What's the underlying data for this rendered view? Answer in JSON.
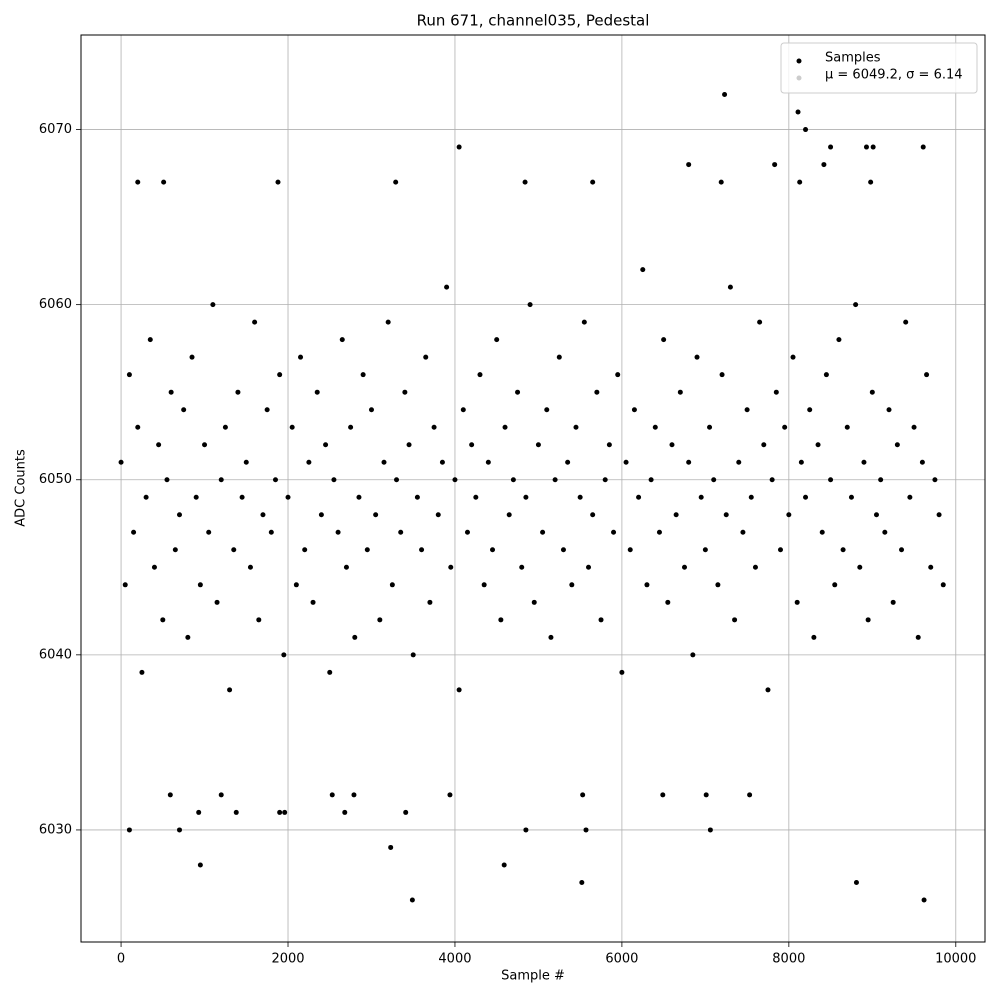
{
  "chart_data": {
    "type": "scatter",
    "title": "Run 671, channel035, Pedestal",
    "x_label": "Sample #",
    "y_label": "ADC Counts",
    "xlim": [
      -480,
      10350
    ],
    "ylim": [
      6023.6,
      6075.4
    ],
    "xticks": [
      0,
      2000,
      4000,
      6000,
      8000,
      10000
    ],
    "yticks": [
      6030,
      6040,
      6050,
      6060,
      6070
    ],
    "grid": true,
    "legend": "upper right",
    "series": [
      {
        "name": "Samples",
        "color": "#000000",
        "x": [
          0,
          50,
          100,
          150,
          200,
          250,
          300,
          350,
          400,
          450,
          500,
          550,
          600,
          650,
          700,
          750,
          800,
          850,
          900,
          950,
          1000,
          1050,
          1100,
          1150,
          1200,
          1250,
          1300,
          1350,
          1400,
          1450,
          1500,
          1550,
          1600,
          1650,
          1700,
          1750,
          1800,
          1850,
          1900,
          1950,
          2000,
          2050,
          2100,
          2150,
          2200,
          2250,
          2300,
          2350,
          2400,
          2450,
          2500,
          2550,
          2600,
          2650,
          2700,
          2750,
          2800,
          2850,
          2900,
          2950,
          3000,
          3050,
          3100,
          3150,
          3200,
          3250,
          3300,
          3350,
          3400,
          3450,
          3500,
          3550,
          3600,
          3650,
          3700,
          3750,
          3800,
          3850,
          3900,
          3950,
          4000,
          4050,
          4100,
          4150,
          4200,
          4250,
          4300,
          4350,
          4400,
          4450,
          4500,
          4550,
          4600,
          4650,
          4700,
          4750,
          4800,
          4850,
          4900,
          4950,
          5000,
          5050,
          5100,
          5150,
          5200,
          5250,
          5300,
          5350,
          5400,
          5450,
          5500,
          5550,
          5600,
          5650,
          5700,
          5750,
          5800,
          5850,
          5900,
          5950,
          6000,
          6050,
          6100,
          6150,
          6200,
          6250,
          6300,
          6350,
          6400,
          6450,
          6500,
          6550,
          6600,
          6650,
          6700,
          6750,
          6800,
          6850,
          6900,
          6950,
          7000,
          7050,
          7100,
          7150,
          7200,
          7250,
          7300,
          7350,
          7400,
          7450,
          7500,
          7550,
          7600,
          7650,
          7700,
          7750,
          7800,
          7850,
          7900,
          7950,
          8000,
          8050,
          8100,
          8150,
          8200,
          8250,
          8300,
          8350,
          8400,
          8450,
          8500,
          8550,
          8600,
          8650,
          8700,
          8750,
          8800,
          8850,
          8900,
          8950,
          9000,
          9050,
          9100,
          9150,
          9200,
          9250,
          9300,
          9350,
          9400,
          9450,
          9500,
          9550,
          9600,
          9650,
          9700,
          9750,
          9800,
          9850,
          100,
          950,
          3230,
          3490,
          4590,
          5520,
          8810,
          9620,
          7230,
          8110,
          8200,
          4050,
          8930,
          9010,
          9610,
          8500,
          7830,
          6800,
          8420,
          200,
          510,
          1880,
          3290,
          5650,
          4840,
          7190,
          8130,
          8980,
          7060,
          4850,
          5570,
          700,
          1900,
          1960,
          2680,
          3410,
          1380,
          930,
          7010,
          5530,
          6490,
          2530,
          2790,
          1200,
          3940,
          7530,
          590
        ],
        "values": [
          6051,
          6044,
          6056,
          6047,
          6053,
          6039,
          6049,
          6058,
          6045,
          6052,
          6042,
          6050,
          6055,
          6046,
          6048,
          6054,
          6041,
          6057,
          6049,
          6044,
          6052,
          6047,
          6060,
          6043,
          6050,
          6053,
          6038,
          6046,
          6055,
          6049,
          6051,
          6045,
          6059,
          6042,
          6048,
          6054,
          6047,
          6050,
          6056,
          6040,
          6049,
          6053,
          6044,
          6057,
          6046,
          6051,
          6043,
          6055,
          6048,
          6052,
          6039,
          6050,
          6047,
          6058,
          6045,
          6053,
          6041,
          6049,
          6056,
          6046,
          6054,
          6048,
          6042,
          6051,
          6059,
          6044,
          6050,
          6047,
          6055,
          6052,
          6040,
          6049,
          6046,
          6057,
          6043,
          6053,
          6048,
          6051,
          6061,
          6045,
          6050,
          6038,
          6054,
          6047,
          6052,
          6049,
          6056,
          6044,
          6051,
          6046,
          6058,
          6042,
          6053,
          6048,
          6050,
          6055,
          6045,
          6049,
          6060,
          6043,
          6052,
          6047,
          6054,
          6041,
          6050,
          6057,
          6046,
          6051,
          6044,
          6053,
          6049,
          6059,
          6045,
          6048,
          6055,
          6042,
          6050,
          6052,
          6047,
          6056,
          6039,
          6051,
          6046,
          6054,
          6049,
          6062,
          6044,
          6050,
          6053,
          6047,
          6058,
          6043,
          6052,
          6048,
          6055,
          6045,
          6051,
          6040,
          6057,
          6049,
          6046,
          6053,
          6050,
          6044,
          6056,
          6048,
          6061,
          6042,
          6051,
          6047,
          6054,
          6049,
          6045,
          6059,
          6052,
          6038,
          6050,
          6055,
          6046,
          6053,
          6048,
          6057,
          6043,
          6051,
          6049,
          6054,
          6041,
          6052,
          6047,
          6056,
          6050,
          6044,
          6058,
          6046,
          6053,
          6049,
          6060,
          6045,
          6051,
          6042,
          6055,
          6048,
          6050,
          6047,
          6054,
          6043,
          6052,
          6046,
          6059,
          6049,
          6053,
          6041,
          6051,
          6056,
          6045,
          6050,
          6048,
          6044,
          6030,
          6028,
          6029,
          6026,
          6028,
          6027,
          6027,
          6026,
          6072,
          6071,
          6070,
          6069,
          6069,
          6069,
          6069,
          6069,
          6068,
          6068,
          6068,
          6067,
          6067,
          6067,
          6067,
          6067,
          6067,
          6067,
          6067,
          6067,
          6030,
          6030,
          6030,
          6030,
          6031,
          6031,
          6031,
          6031,
          6031,
          6031,
          6032,
          6032,
          6032,
          6032,
          6032,
          6032,
          6032,
          6032,
          6032
        ]
      },
      {
        "name": "μ = 6049.2, σ = 6.14",
        "color": "#cccccc",
        "x": [],
        "values": []
      }
    ]
  }
}
